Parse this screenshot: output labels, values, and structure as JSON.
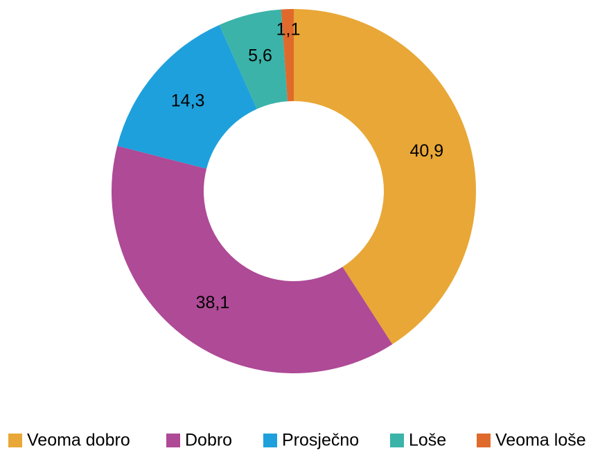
{
  "chart_data": {
    "type": "donut",
    "categories": [
      "Veoma dobro",
      "Dobro",
      "Prosječno",
      "Loše",
      "Veoma loše"
    ],
    "values": [
      40.9,
      38.1,
      14.3,
      5.6,
      1.1
    ],
    "value_labels": [
      "40,9",
      "38,1",
      "14,3",
      "5,6",
      "1,1"
    ],
    "colors": [
      "#e8a736",
      "#ae4a96",
      "#1ea0dc",
      "#3bb3a9",
      "#e06a2c"
    ],
    "legend": "bottom"
  }
}
